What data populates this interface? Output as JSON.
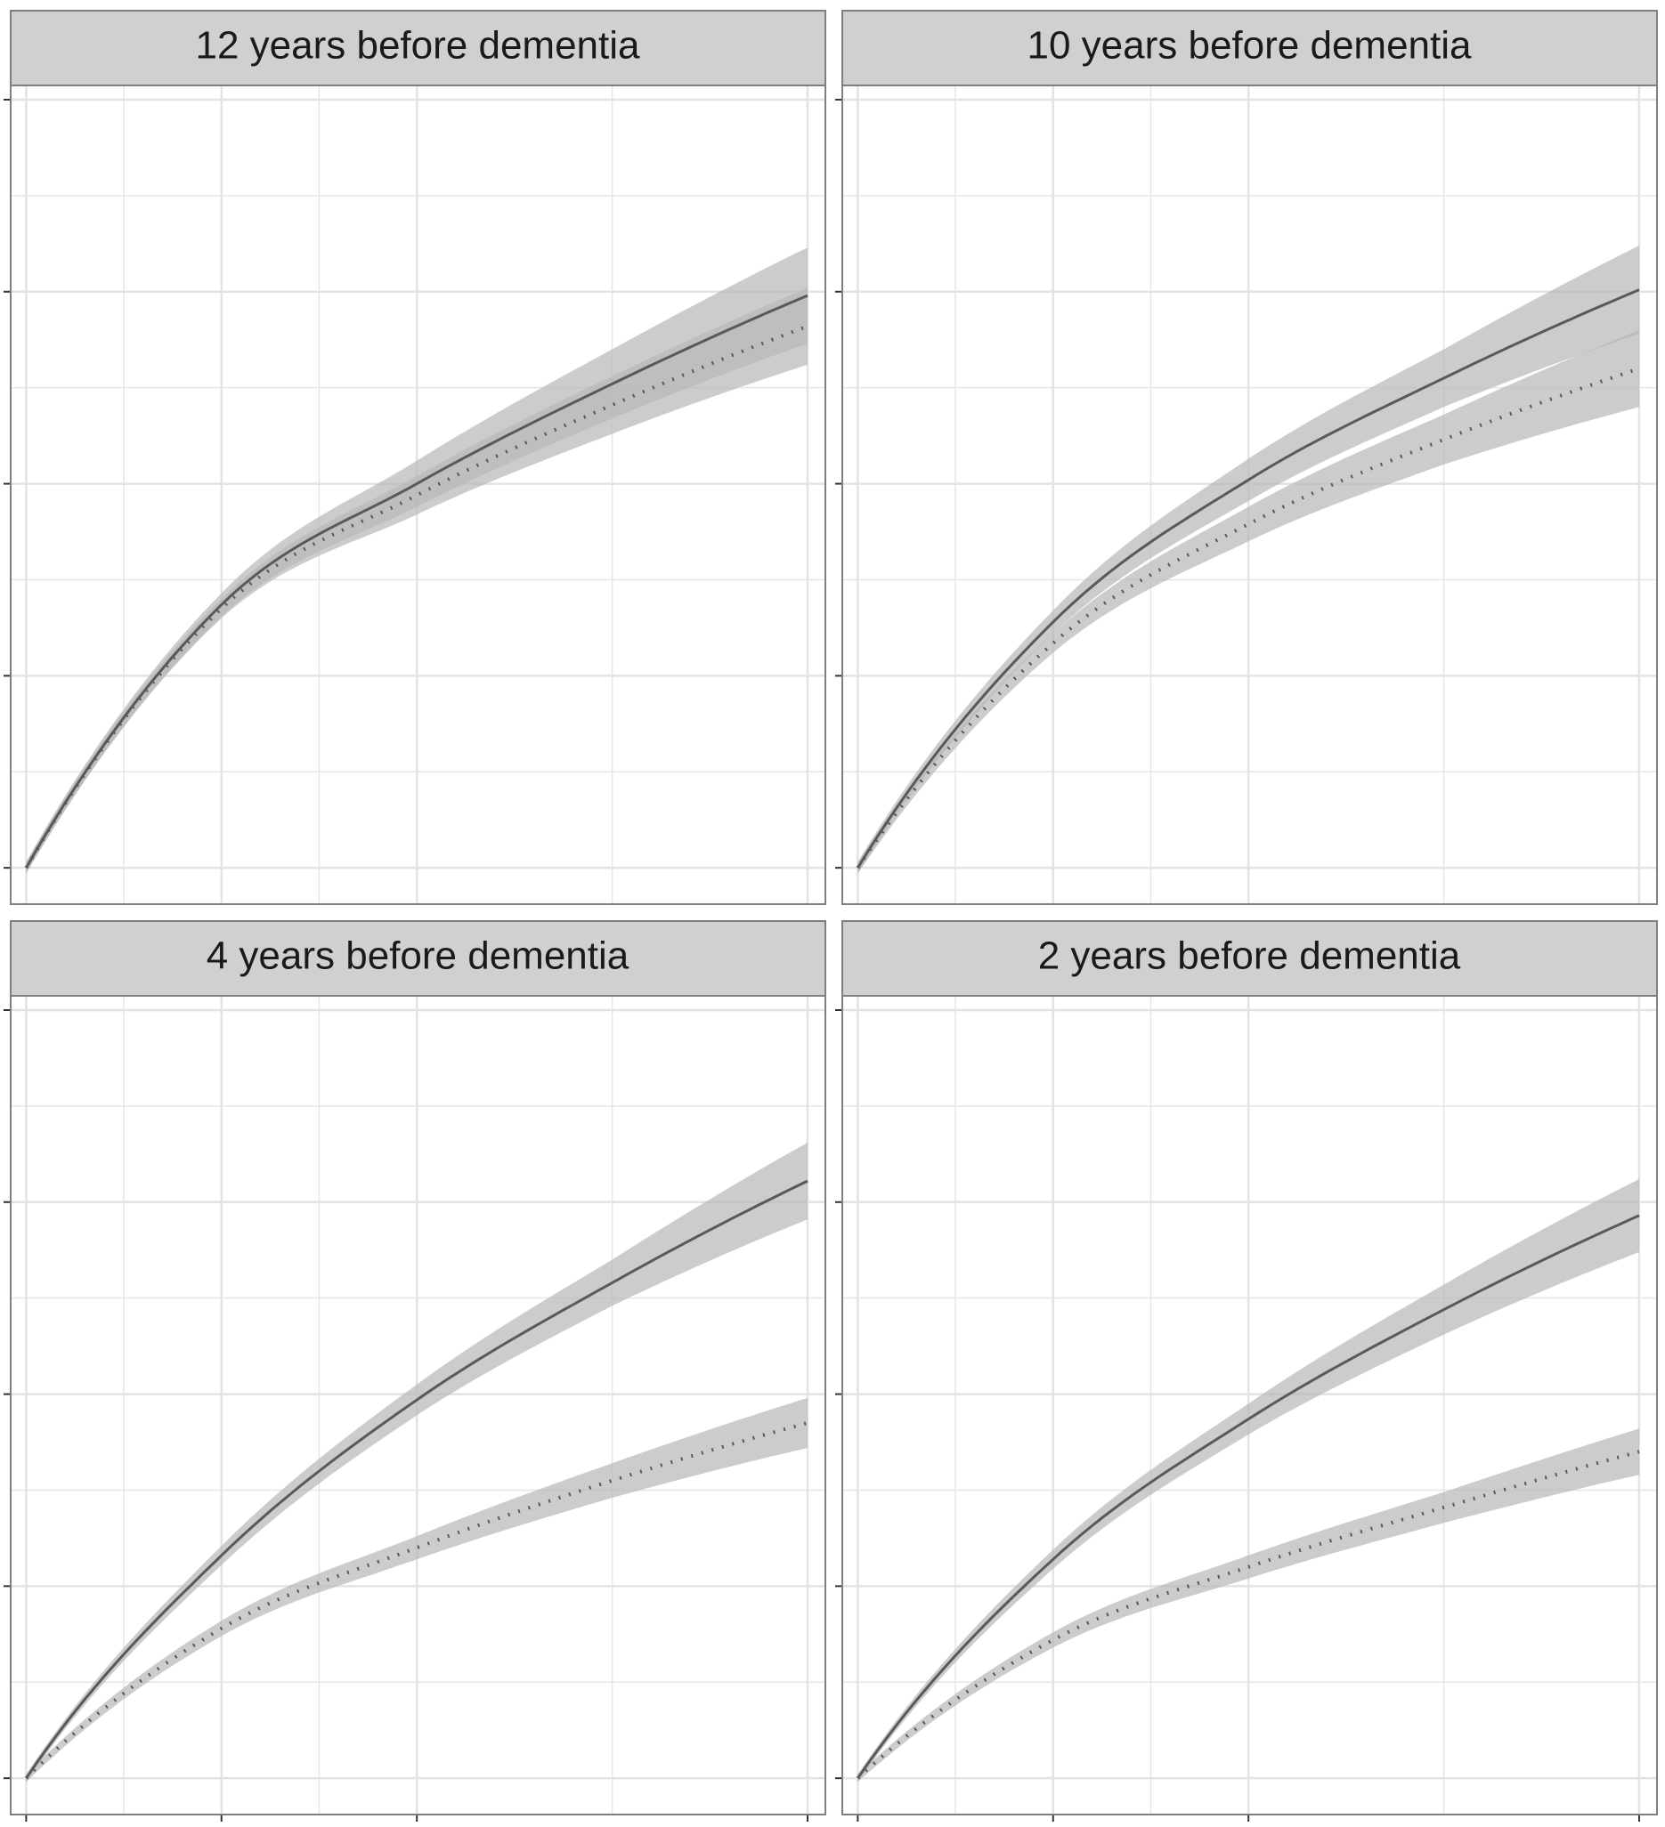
{
  "chart_data": [
    {
      "type": "line",
      "title": "12 years before dementia",
      "x": [
        0,
        1,
        2,
        3,
        4
      ],
      "series": [
        {
          "style": "solid",
          "values": [
            0.0,
            1.37,
            2.0,
            2.52,
            2.98
          ],
          "ci_halfwidth": [
            0.03,
            0.06,
            0.12,
            0.18,
            0.25
          ]
        },
        {
          "style": "dotted",
          "values": [
            0.0,
            1.35,
            1.94,
            2.41,
            2.82
          ],
          "ci_halfwidth": [
            0.03,
            0.05,
            0.1,
            0.15,
            0.2
          ]
        }
      ]
    },
    {
      "type": "line",
      "title": "10 years before dementia",
      "x": [
        0,
        1,
        2,
        3,
        4
      ],
      "series": [
        {
          "style": "solid",
          "values": [
            0.0,
            1.28,
            2.02,
            2.55,
            3.01
          ],
          "ci_halfwidth": [
            0.03,
            0.06,
            0.11,
            0.15,
            0.23
          ]
        },
        {
          "style": "dotted",
          "values": [
            0.0,
            1.17,
            1.79,
            2.23,
            2.6
          ],
          "ci_halfwidth": [
            0.03,
            0.05,
            0.09,
            0.13,
            0.2
          ]
        }
      ]
    },
    {
      "type": "line",
      "title": "4 years before dementia",
      "x": [
        0,
        1,
        2,
        3,
        4
      ],
      "series": [
        {
          "style": "solid",
          "values": [
            0.0,
            1.16,
            1.97,
            2.58,
            3.11
          ],
          "ci_halfwidth": [
            0.02,
            0.05,
            0.08,
            0.12,
            0.2
          ]
        },
        {
          "style": "dotted",
          "values": [
            0.0,
            0.78,
            1.2,
            1.55,
            1.85
          ],
          "ci_halfwidth": [
            0.02,
            0.04,
            0.06,
            0.09,
            0.13
          ]
        }
      ]
    },
    {
      "type": "line",
      "title": "2 years before dementia",
      "x": [
        0,
        1,
        2,
        3,
        4
      ],
      "series": [
        {
          "style": "solid",
          "values": [
            0.0,
            1.14,
            1.87,
            2.44,
            2.93
          ],
          "ci_halfwidth": [
            0.02,
            0.05,
            0.08,
            0.13,
            0.19
          ]
        },
        {
          "style": "dotted",
          "values": [
            0.0,
            0.72,
            1.1,
            1.41,
            1.7
          ],
          "ci_halfwidth": [
            0.02,
            0.04,
            0.06,
            0.08,
            0.12
          ]
        }
      ]
    }
  ],
  "axes": {
    "xlim": [
      -0.07,
      4.0
    ],
    "ylim": [
      -0.18,
      4.0
    ],
    "x_major_ticks": [
      0,
      1,
      2,
      4
    ],
    "x_minor_gridlines": [
      0.5,
      1.5,
      3.0
    ],
    "y_major_ticks": [
      0,
      1,
      2,
      3,
      4
    ],
    "y_minor_gridlines": [
      0.5,
      1.5,
      2.5,
      3.5
    ],
    "tick_labels_shown": false,
    "grid": true,
    "facet_layout": "2x2"
  },
  "colors": {
    "line": "#595959",
    "ribbon": "#b8b8b8",
    "strip_background": "#d0d0d0",
    "panel_border": "#7f7f7f",
    "grid": "#e6e6e6"
  }
}
